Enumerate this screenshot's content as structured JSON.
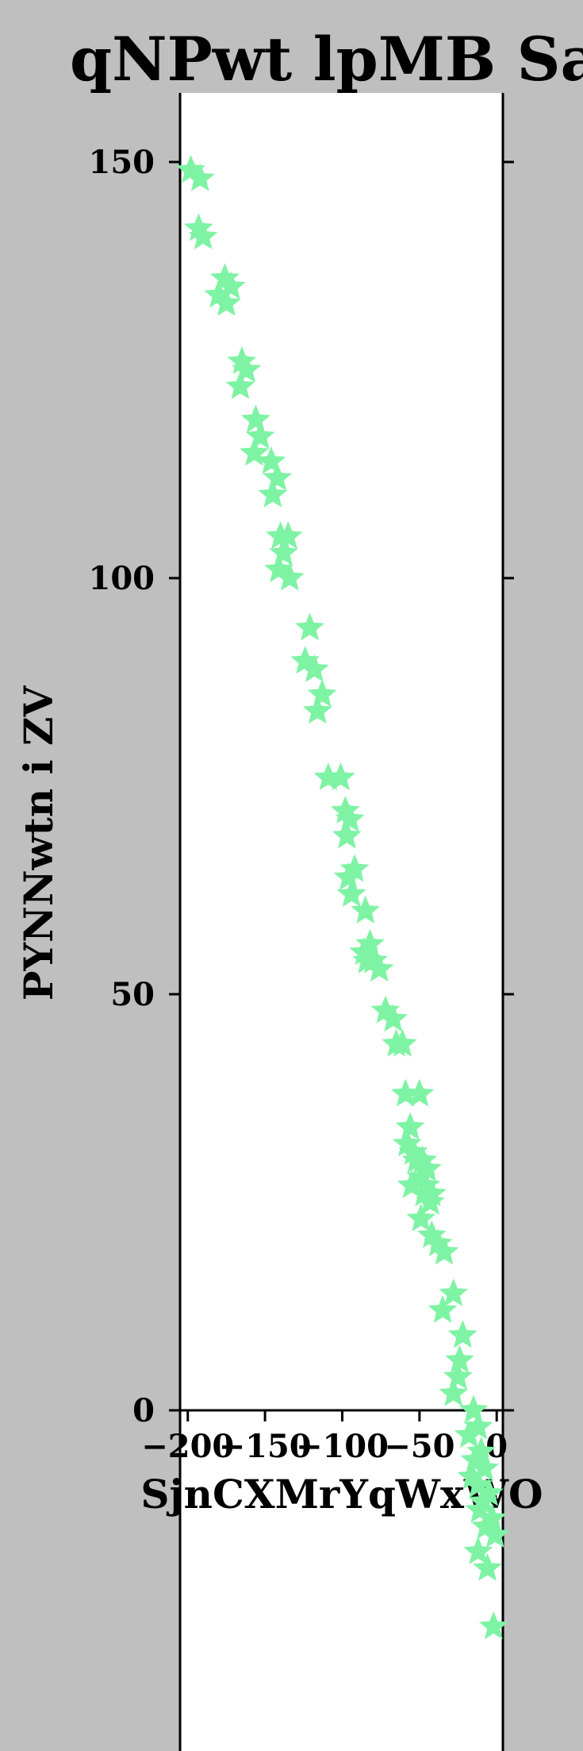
{
  "chart_data": {
    "type": "scatter",
    "title": "qNPwt lpMB  Sa",
    "xlabel": "SjnCXMrYqWxWO",
    "ylabel": "PYNNwtn i ZV",
    "x_ticks": [
      "−200",
      "−150",
      "−100",
      "−50",
      "0"
    ],
    "y_ticks": [
      "0",
      "50",
      "100",
      "150"
    ],
    "xlim": [
      -205,
      4
    ],
    "ylim": [
      -35,
      158
    ],
    "grid": false,
    "marker": "star",
    "marker_color": "#7ff3a4",
    "background_color": "#bfbfbf",
    "plot_background_color": "#ffffff",
    "points": [
      [
        -198,
        149
      ],
      [
        -192,
        148
      ],
      [
        -193,
        142
      ],
      [
        -190,
        141
      ],
      [
        -176,
        136
      ],
      [
        -180,
        134
      ],
      [
        -172,
        135
      ],
      [
        -175,
        133
      ],
      [
        -165,
        126
      ],
      [
        -162,
        125
      ],
      [
        -166,
        123
      ],
      [
        -156,
        119
      ],
      [
        -153,
        117
      ],
      [
        -157,
        115
      ],
      [
        -146,
        114
      ],
      [
        -142,
        112
      ],
      [
        -145,
        110
      ],
      [
        -140,
        105
      ],
      [
        -135,
        105
      ],
      [
        -138,
        103
      ],
      [
        -141,
        101
      ],
      [
        -134,
        100
      ],
      [
        -121,
        94
      ],
      [
        -124,
        90
      ],
      [
        -118,
        89
      ],
      [
        -113,
        86
      ],
      [
        -116,
        84
      ],
      [
        -109,
        76
      ],
      [
        -101,
        76
      ],
      [
        -98,
        72
      ],
      [
        -95,
        71
      ],
      [
        -97,
        69
      ],
      [
        -92,
        65
      ],
      [
        -96,
        64
      ],
      [
        -94,
        62
      ],
      [
        -85,
        60
      ],
      [
        -82,
        56
      ],
      [
        -86,
        55
      ],
      [
        -80,
        54
      ],
      [
        -84,
        54
      ],
      [
        -76,
        53
      ],
      [
        -72,
        48
      ],
      [
        -67,
        47
      ],
      [
        -65,
        44
      ],
      [
        -61,
        44
      ],
      [
        -59,
        38
      ],
      [
        -50,
        38
      ],
      [
        -56,
        34
      ],
      [
        -58,
        32
      ],
      [
        -54,
        31
      ],
      [
        -48,
        30
      ],
      [
        -52,
        30
      ],
      [
        -45,
        29
      ],
      [
        -49,
        28
      ],
      [
        -55,
        27
      ],
      [
        -46,
        27
      ],
      [
        -42,
        26
      ],
      [
        -47,
        26
      ],
      [
        -43,
        25
      ],
      [
        -49,
        23
      ],
      [
        -42,
        21
      ],
      [
        -38,
        20
      ],
      [
        -34,
        19
      ],
      [
        -28,
        14
      ],
      [
        -35,
        12
      ],
      [
        -22,
        9
      ],
      [
        -24,
        6
      ],
      [
        -25,
        4
      ],
      [
        -28,
        2
      ],
      [
        -15,
        0
      ],
      [
        -12,
        -2
      ],
      [
        -18,
        -3
      ],
      [
        -10,
        -5
      ],
      [
        -14,
        -6
      ],
      [
        -8,
        -7
      ],
      [
        -16,
        -8
      ],
      [
        -12,
        -9
      ],
      [
        -5,
        -10
      ],
      [
        -9,
        -11
      ],
      [
        -11,
        -12
      ],
      [
        -3,
        -13
      ],
      [
        -7,
        -14
      ],
      [
        -1,
        -15
      ],
      [
        -12,
        -17
      ],
      [
        -6,
        -19
      ],
      [
        -2,
        -26
      ]
    ]
  }
}
